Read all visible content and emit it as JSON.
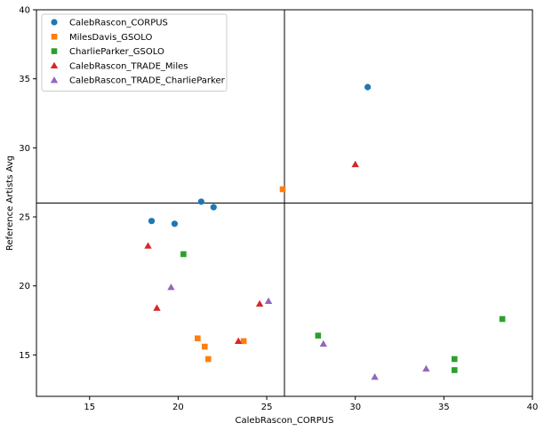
{
  "chart_data": {
    "type": "scatter",
    "xlabel": "CalebRascon_CORPUS",
    "ylabel": "Reference Artists Avg",
    "xlim": [
      12,
      40
    ],
    "ylim": [
      12,
      40
    ],
    "xticks": [
      15,
      20,
      25,
      30,
      35,
      40
    ],
    "yticks": [
      15,
      20,
      25,
      30,
      35,
      40
    ],
    "grid": false,
    "legend_position": "top-left",
    "reference_lines": {
      "vertical_x": 26,
      "horizontal_y": 26
    },
    "series": [
      {
        "name": "CalebRascon_CORPUS",
        "marker": "circle",
        "color": "#1f77b4",
        "points": [
          [
            18.5,
            24.7
          ],
          [
            19.8,
            24.5
          ],
          [
            21.3,
            26.1
          ],
          [
            22.0,
            25.7
          ],
          [
            30.7,
            34.4
          ]
        ]
      },
      {
        "name": "MilesDavis_GSOLO",
        "marker": "square",
        "color": "#ff7f0e",
        "points": [
          [
            21.1,
            16.2
          ],
          [
            21.5,
            15.6
          ],
          [
            21.7,
            14.7
          ],
          [
            23.7,
            16.0
          ],
          [
            25.9,
            27.0
          ]
        ]
      },
      {
        "name": "CharlieParker_GSOLO",
        "marker": "square",
        "color": "#2ca02c",
        "points": [
          [
            20.3,
            22.3
          ],
          [
            27.9,
            16.4
          ],
          [
            35.6,
            14.7
          ],
          [
            35.6,
            13.9
          ],
          [
            38.3,
            17.6
          ]
        ]
      },
      {
        "name": "CalebRascon_TRADE_Miles",
        "marker": "triangle",
        "color": "#d62728",
        "points": [
          [
            18.3,
            22.9
          ],
          [
            18.8,
            18.4
          ],
          [
            23.4,
            16.0
          ],
          [
            24.6,
            18.7
          ],
          [
            30.0,
            28.8
          ]
        ]
      },
      {
        "name": "CalebRascon_TRADE_CharlieParker",
        "marker": "triangle",
        "color": "#9467bd",
        "points": [
          [
            19.6,
            19.9
          ],
          [
            25.1,
            18.9
          ],
          [
            28.2,
            15.8
          ],
          [
            31.1,
            13.4
          ],
          [
            34.0,
            14.0
          ]
        ]
      }
    ]
  }
}
